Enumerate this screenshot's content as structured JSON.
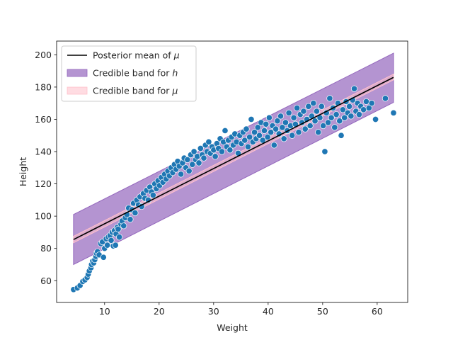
{
  "chart_data": {
    "type": "scatter",
    "xlabel": "Weight",
    "ylabel": "Height",
    "xlim": [
      1.2,
      65.6
    ],
    "ylim": [
      46.5,
      208.5
    ],
    "x_ticks": [
      10,
      20,
      30,
      40,
      50,
      60
    ],
    "y_ticks": [
      60,
      80,
      100,
      120,
      140,
      160,
      180,
      200
    ],
    "legend": {
      "placement": "top-left",
      "entries": [
        {
          "kind": "line",
          "label": "Posterior mean of ",
          "symbol": "μ",
          "color": "#000000"
        },
        {
          "kind": "patch",
          "label": "Credible band for ",
          "symbol": "h",
          "color": "#9467bd"
        },
        {
          "kind": "patch",
          "label": "Credible band for ",
          "symbol": "μ",
          "color": "#ffc0cb"
        }
      ]
    },
    "series": [
      {
        "name": "Posterior mean of μ",
        "kind": "line",
        "color": "#000000",
        "x": [
          4.3,
          63.0
        ],
        "y": [
          85.5,
          186.0
        ]
      },
      {
        "name": "Credible band for h",
        "kind": "band",
        "color": "#9467bd",
        "x": [
          4.3,
          63.0
        ],
        "lower": [
          70.0,
          170.5
        ],
        "upper": [
          101.0,
          201.0
        ]
      },
      {
        "name": "Credible band for μ",
        "kind": "band",
        "color": "#ffc0cb",
        "x": [
          4.3,
          63.0
        ],
        "lower": [
          83.5,
          184.5
        ],
        "upper": [
          87.5,
          188.0
        ]
      }
    ],
    "scatter": {
      "color": "#1f77b4",
      "edgecolor": "#ffffff",
      "points": [
        [
          4.3,
          54.5
        ],
        [
          5.0,
          55.5
        ],
        [
          5.5,
          57
        ],
        [
          6.0,
          59.5
        ],
        [
          6.4,
          60.5
        ],
        [
          6.8,
          62
        ],
        [
          7.0,
          64
        ],
        [
          7.2,
          66
        ],
        [
          7.5,
          68
        ],
        [
          7.6,
          70
        ],
        [
          7.8,
          72
        ],
        [
          8.0,
          71
        ],
        [
          8.2,
          73
        ],
        [
          8.4,
          75
        ],
        [
          8.5,
          77
        ],
        [
          8.7,
          78
        ],
        [
          9.0,
          76
        ],
        [
          9.3,
          83
        ],
        [
          9.6,
          84
        ],
        [
          9.8,
          74.5
        ],
        [
          10.0,
          80
        ],
        [
          10.3,
          86
        ],
        [
          10.5,
          82
        ],
        [
          10.7,
          87
        ],
        [
          11.0,
          88
        ],
        [
          11.2,
          85
        ],
        [
          11.4,
          90
        ],
        [
          11.6,
          81.5
        ],
        [
          11.8,
          91
        ],
        [
          12.0,
          82
        ],
        [
          12.1,
          89
        ],
        [
          12.3,
          93
        ],
        [
          12.5,
          92
        ],
        [
          12.7,
          87
        ],
        [
          13.0,
          95
        ],
        [
          13.2,
          97
        ],
        [
          13.5,
          94
        ],
        [
          13.8,
          99
        ],
        [
          14.1,
          101
        ],
        [
          14.4,
          105
        ],
        [
          14.7,
          98
        ],
        [
          15.0,
          104
        ],
        [
          15.3,
          108
        ],
        [
          15.6,
          102
        ],
        [
          15.9,
          110
        ],
        [
          16.2,
          107
        ],
        [
          16.5,
          112
        ],
        [
          16.8,
          106
        ],
        [
          17.1,
          114
        ],
        [
          17.4,
          111
        ],
        [
          17.7,
          116
        ],
        [
          18.0,
          110
        ],
        [
          18.3,
          118
        ],
        [
          18.6,
          115
        ],
        [
          18.9,
          113
        ],
        [
          19.2,
          120
        ],
        [
          19.5,
          117
        ],
        [
          19.8,
          122
        ],
        [
          20.1,
          119
        ],
        [
          20.4,
          124
        ],
        [
          20.7,
          121
        ],
        [
          21.0,
          126
        ],
        [
          21.3,
          123
        ],
        [
          21.6,
          128
        ],
        [
          21.9,
          125
        ],
        [
          22.2,
          130
        ],
        [
          22.5,
          127
        ],
        [
          22.8,
          132
        ],
        [
          23.1,
          129
        ],
        [
          23.4,
          134
        ],
        [
          23.7,
          131
        ],
        [
          24.0,
          126
        ],
        [
          24.3,
          133
        ],
        [
          24.6,
          136
        ],
        [
          24.9,
          130
        ],
        [
          25.2,
          135
        ],
        [
          25.5,
          128
        ],
        [
          25.8,
          138
        ],
        [
          26.1,
          132
        ],
        [
          26.4,
          140
        ],
        [
          26.7,
          135
        ],
        [
          27.0,
          137
        ],
        [
          27.3,
          133
        ],
        [
          27.6,
          142
        ],
        [
          27.9,
          138
        ],
        [
          28.2,
          136
        ],
        [
          28.5,
          144
        ],
        [
          28.8,
          140
        ],
        [
          29.1,
          146
        ],
        [
          29.4,
          139
        ],
        [
          29.7,
          143
        ],
        [
          30.0,
          141
        ],
        [
          30.3,
          137
        ],
        [
          30.6,
          145
        ],
        [
          30.9,
          142
        ],
        [
          31.2,
          148
        ],
        [
          31.5,
          140
        ],
        [
          31.8,
          146
        ],
        [
          32.1,
          153
        ],
        [
          32.4,
          143
        ],
        [
          32.7,
          147
        ],
        [
          33.0,
          141
        ],
        [
          33.3,
          149
        ],
        [
          33.6,
          144
        ],
        [
          33.9,
          151
        ],
        [
          34.2,
          146
        ],
        [
          34.5,
          139
        ],
        [
          34.8,
          150
        ],
        [
          35.1,
          145
        ],
        [
          35.4,
          152
        ],
        [
          35.7,
          147
        ],
        [
          36.0,
          154
        ],
        [
          36.3,
          143
        ],
        [
          36.6,
          149
        ],
        [
          36.9,
          160
        ],
        [
          37.2,
          146
        ],
        [
          37.5,
          152
        ],
        [
          37.8,
          148
        ],
        [
          38.1,
          155
        ],
        [
          38.4,
          150
        ],
        [
          38.7,
          158
        ],
        [
          39.0,
          147
        ],
        [
          39.3,
          153
        ],
        [
          39.6,
          157
        ],
        [
          39.9,
          149
        ],
        [
          40.2,
          161
        ],
        [
          40.5,
          152
        ],
        [
          40.8,
          156
        ],
        [
          41.1,
          144
        ],
        [
          41.4,
          154
        ],
        [
          41.7,
          159
        ],
        [
          42.0,
          151
        ],
        [
          42.3,
          162
        ],
        [
          42.6,
          155
        ],
        [
          42.9,
          148
        ],
        [
          43.2,
          158
        ],
        [
          43.5,
          153
        ],
        [
          43.8,
          164
        ],
        [
          44.1,
          156
        ],
        [
          44.4,
          150
        ],
        [
          44.7,
          161
        ],
        [
          45.0,
          157
        ],
        [
          45.3,
          167
        ],
        [
          45.6,
          152
        ],
        [
          45.9,
          163
        ],
        [
          46.2,
          158
        ],
        [
          46.5,
          165
        ],
        [
          46.8,
          154
        ],
        [
          47.1,
          160
        ],
        [
          47.4,
          168
        ],
        [
          47.7,
          156
        ],
        [
          48.0,
          162
        ],
        [
          48.3,
          170
        ],
        [
          48.6,
          159
        ],
        [
          48.9,
          165
        ],
        [
          49.2,
          152
        ],
        [
          49.5,
          161
        ],
        [
          49.8,
          168
        ],
        [
          50.1,
          156
        ],
        [
          50.4,
          140
        ],
        [
          50.7,
          164
        ],
        [
          51.0,
          158
        ],
        [
          51.3,
          173
        ],
        [
          51.6,
          161
        ],
        [
          51.9,
          167
        ],
        [
          52.2,
          155
        ],
        [
          52.5,
          163
        ],
        [
          52.8,
          170
        ],
        [
          53.1,
          159
        ],
        [
          53.4,
          150
        ],
        [
          53.7,
          166
        ],
        [
          54.0,
          161
        ],
        [
          54.3,
          171
        ],
        [
          54.6,
          164
        ],
        [
          54.9,
          168
        ],
        [
          55.2,
          162
        ],
        [
          55.5,
          172
        ],
        [
          55.8,
          179
        ],
        [
          56.1,
          165
        ],
        [
          56.4,
          170
        ],
        [
          56.7,
          163
        ],
        [
          57.0,
          168
        ],
        [
          57.5,
          166
        ],
        [
          58.0,
          171
        ],
        [
          58.5,
          167
        ],
        [
          59.0,
          170
        ],
        [
          59.7,
          160
        ],
        [
          61.5,
          173
        ],
        [
          63.0,
          164
        ]
      ]
    }
  }
}
